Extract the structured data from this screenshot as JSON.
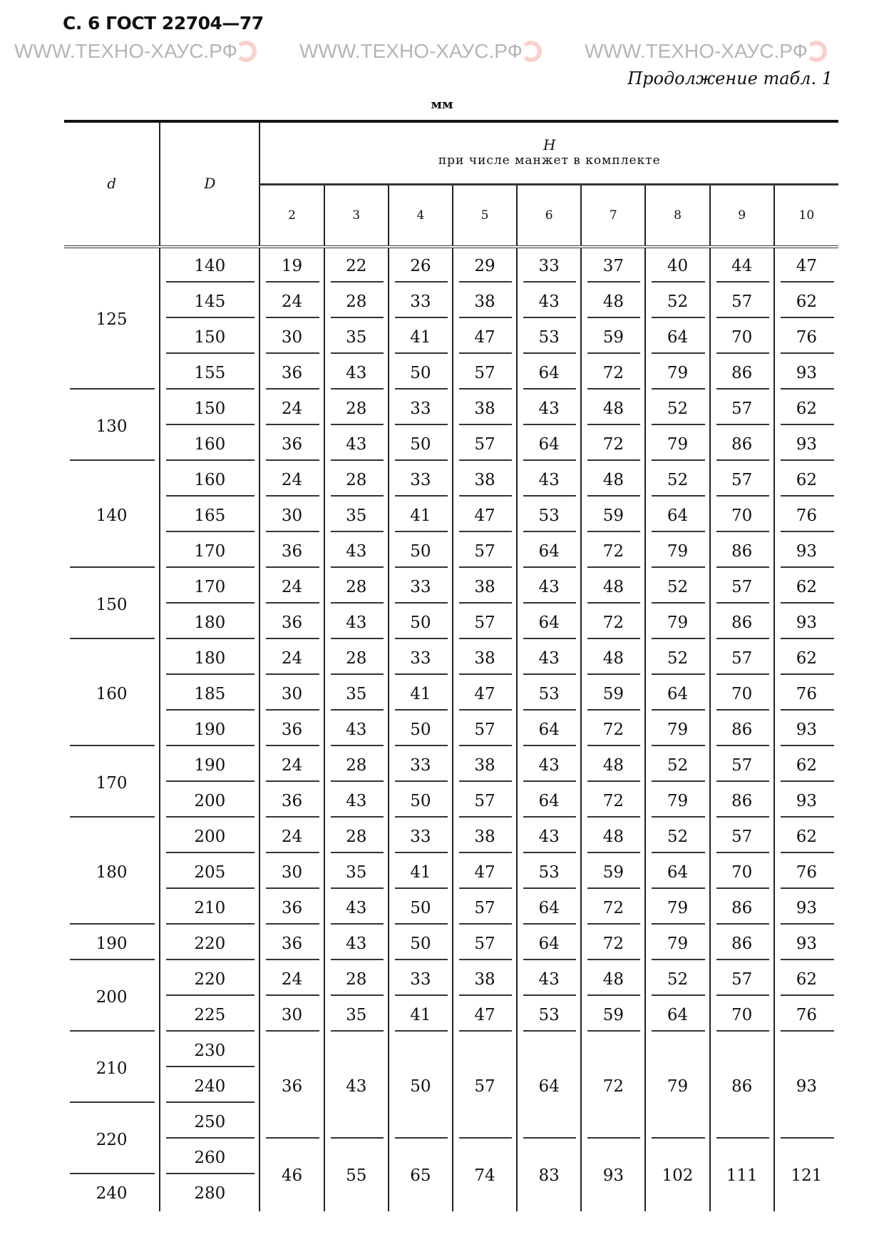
{
  "page_header": "С. 6 ГОСТ 22704—77",
  "continuation": "Продолжение табл. 1",
  "unit": "мм",
  "columns": {
    "d": "d",
    "D": "D",
    "H_title": "H",
    "H_subtitle": "при числе манжет в комплекте",
    "counts": [
      "2",
      "3",
      "4",
      "5",
      "6",
      "7",
      "8",
      "9",
      "10"
    ]
  },
  "groups": [
    {
      "d": "125",
      "rows": [
        {
          "D": "140",
          "H": [
            "19",
            "22",
            "26",
            "29",
            "33",
            "37",
            "40",
            "44",
            "47"
          ]
        },
        {
          "D": "145",
          "H": [
            "24",
            "28",
            "33",
            "38",
            "43",
            "48",
            "52",
            "57",
            "62"
          ]
        },
        {
          "D": "150",
          "H": [
            "30",
            "35",
            "41",
            "47",
            "53",
            "59",
            "64",
            "70",
            "76"
          ]
        },
        {
          "D": "155",
          "H": [
            "36",
            "43",
            "50",
            "57",
            "64",
            "72",
            "79",
            "86",
            "93"
          ]
        }
      ]
    },
    {
      "d": "130",
      "rows": [
        {
          "D": "150",
          "H": [
            "24",
            "28",
            "33",
            "38",
            "43",
            "48",
            "52",
            "57",
            "62"
          ]
        },
        {
          "D": "160",
          "H": [
            "36",
            "43",
            "50",
            "57",
            "64",
            "72",
            "79",
            "86",
            "93"
          ]
        }
      ]
    },
    {
      "d": "140",
      "rows": [
        {
          "D": "160",
          "H": [
            "24",
            "28",
            "33",
            "38",
            "43",
            "48",
            "52",
            "57",
            "62"
          ]
        },
        {
          "D": "165",
          "H": [
            "30",
            "35",
            "41",
            "47",
            "53",
            "59",
            "64",
            "70",
            "76"
          ]
        },
        {
          "D": "170",
          "H": [
            "36",
            "43",
            "50",
            "57",
            "64",
            "72",
            "79",
            "86",
            "93"
          ]
        }
      ]
    },
    {
      "d": "150",
      "rows": [
        {
          "D": "170",
          "H": [
            "24",
            "28",
            "33",
            "38",
            "43",
            "48",
            "52",
            "57",
            "62"
          ]
        },
        {
          "D": "180",
          "H": [
            "36",
            "43",
            "50",
            "57",
            "64",
            "72",
            "79",
            "86",
            "93"
          ]
        }
      ]
    },
    {
      "d": "160",
      "rows": [
        {
          "D": "180",
          "H": [
            "24",
            "28",
            "33",
            "38",
            "43",
            "48",
            "52",
            "57",
            "62"
          ]
        },
        {
          "D": "185",
          "H": [
            "30",
            "35",
            "41",
            "47",
            "53",
            "59",
            "64",
            "70",
            "76"
          ]
        },
        {
          "D": "190",
          "H": [
            "36",
            "43",
            "50",
            "57",
            "64",
            "72",
            "79",
            "86",
            "93"
          ]
        }
      ]
    },
    {
      "d": "170",
      "rows": [
        {
          "D": "190",
          "H": [
            "24",
            "28",
            "33",
            "38",
            "43",
            "48",
            "52",
            "57",
            "62"
          ]
        },
        {
          "D": "200",
          "H": [
            "36",
            "43",
            "50",
            "57",
            "64",
            "72",
            "79",
            "86",
            "93"
          ]
        }
      ]
    },
    {
      "d": "180",
      "rows": [
        {
          "D": "200",
          "H": [
            "24",
            "28",
            "33",
            "38",
            "43",
            "48",
            "52",
            "57",
            "62"
          ]
        },
        {
          "D": "205",
          "H": [
            "30",
            "35",
            "41",
            "47",
            "53",
            "59",
            "64",
            "70",
            "76"
          ]
        },
        {
          "D": "210",
          "H": [
            "36",
            "43",
            "50",
            "57",
            "64",
            "72",
            "79",
            "86",
            "93"
          ]
        }
      ]
    },
    {
      "d": "190",
      "rows": [
        {
          "D": "220",
          "H": [
            "36",
            "43",
            "50",
            "57",
            "64",
            "72",
            "79",
            "86",
            "93"
          ]
        }
      ]
    },
    {
      "d": "200",
      "rows": [
        {
          "D": "220",
          "H": [
            "24",
            "28",
            "33",
            "38",
            "43",
            "48",
            "52",
            "57",
            "62"
          ]
        },
        {
          "D": "225",
          "H": [
            "30",
            "35",
            "41",
            "47",
            "53",
            "59",
            "64",
            "70",
            "76"
          ]
        }
      ]
    }
  ],
  "merged_block": {
    "d_values": [
      "210",
      "220",
      "240"
    ],
    "D_values": [
      "230",
      "240",
      "250",
      "260",
      "280"
    ],
    "H_upper": [
      "36",
      "43",
      "50",
      "57",
      "64",
      "72",
      "79",
      "86",
      "93"
    ],
    "H_lower": [
      "46",
      "55",
      "65",
      "74",
      "83",
      "93",
      "102",
      "111",
      "121"
    ]
  },
  "watermark": "WWW.ТЕХНО-ХАУС.РФ"
}
